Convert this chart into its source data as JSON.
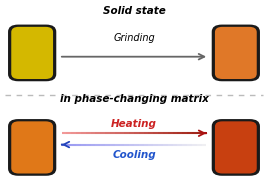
{
  "bg_color": "#ffffff",
  "title_top": "Solid state",
  "title_bottom": "in phase-changing matrix",
  "label_grinding": "Grinding",
  "label_heating": "Heating",
  "label_cooling": "Cooling",
  "box_tl_outer": "#1a1a1a",
  "box_tl_inner": "#d4b800",
  "box_tr_outer": "#1a1a1a",
  "box_tr_inner": "#e07828",
  "box_bl_outer": "#1a1a1a",
  "box_bl_inner": "#e07818",
  "box_br_outer": "#1a1a1a",
  "box_br_inner": "#c84010",
  "arrow_grinding_color": "#666666",
  "arrow_heating_color": "#cc2222",
  "arrow_cooling_color": "#2255cc",
  "dashed_line_color": "#bbbbbb",
  "title_fontsize": 7.5,
  "subtitle_fontsize": 7.5,
  "label_fontsize": 7.0,
  "heating_fontsize": 7.5,
  "cooling_fontsize": 7.5
}
